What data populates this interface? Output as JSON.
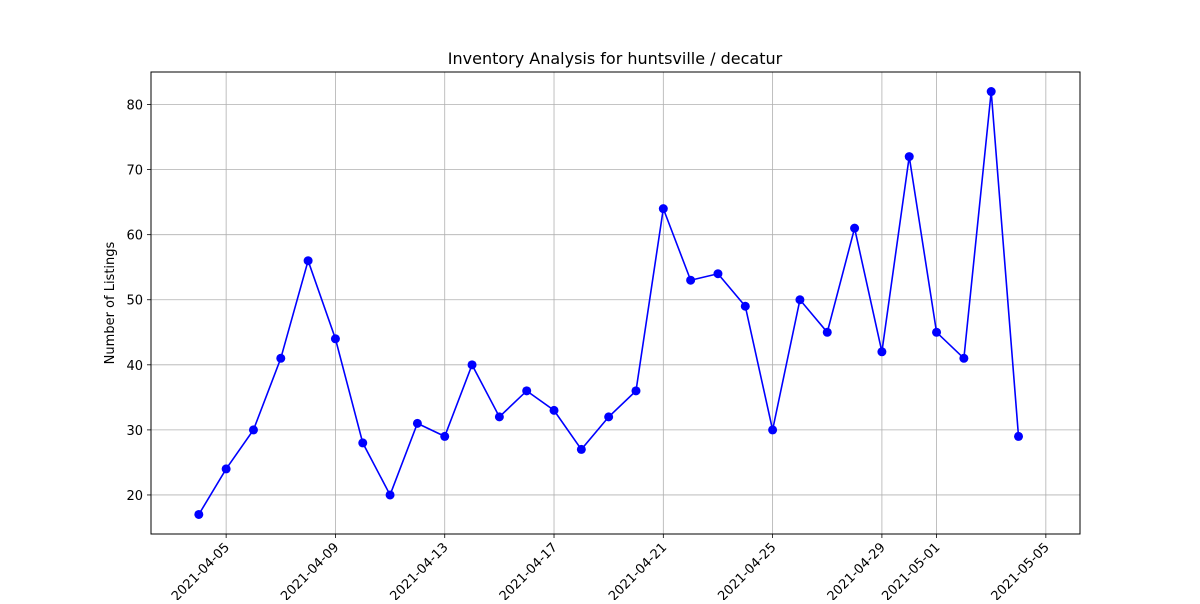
{
  "chart_data": {
    "type": "line",
    "title": "Inventory Analysis for huntsville / decatur",
    "xlabel": "",
    "ylabel": "Number of Listings",
    "x_tick_labels": [
      "2021-04-05",
      "2021-04-09",
      "2021-04-13",
      "2021-04-17",
      "2021-04-21",
      "2021-04-25",
      "2021-04-29",
      "2021-05-01",
      "2021-05-05"
    ],
    "y_ticks": [
      20,
      30,
      40,
      50,
      60,
      70,
      80
    ],
    "ylim": [
      14,
      85
    ],
    "xlim": [
      "2021-04-02",
      "2021-05-06"
    ],
    "grid": true,
    "series": [
      {
        "color": "#0000ff",
        "marker": "circle",
        "x": [
          "2021-04-04",
          "2021-04-05",
          "2021-04-06",
          "2021-04-07",
          "2021-04-08",
          "2021-04-09",
          "2021-04-10",
          "2021-04-11",
          "2021-04-12",
          "2021-04-13",
          "2021-04-14",
          "2021-04-15",
          "2021-04-16",
          "2021-04-17",
          "2021-04-18",
          "2021-04-19",
          "2021-04-20",
          "2021-04-21",
          "2021-04-22",
          "2021-04-23",
          "2021-04-24",
          "2021-04-25",
          "2021-04-26",
          "2021-04-27",
          "2021-04-28",
          "2021-04-29",
          "2021-04-30",
          "2021-05-01",
          "2021-05-02",
          "2021-05-03",
          "2021-05-04"
        ],
        "values": [
          17,
          24,
          30,
          41,
          56,
          44,
          28,
          20,
          31,
          29,
          40,
          32,
          36,
          33,
          27,
          32,
          36,
          64,
          53,
          54,
          49,
          30,
          50,
          45,
          61,
          42,
          72,
          45,
          41,
          82,
          29
        ]
      }
    ]
  }
}
